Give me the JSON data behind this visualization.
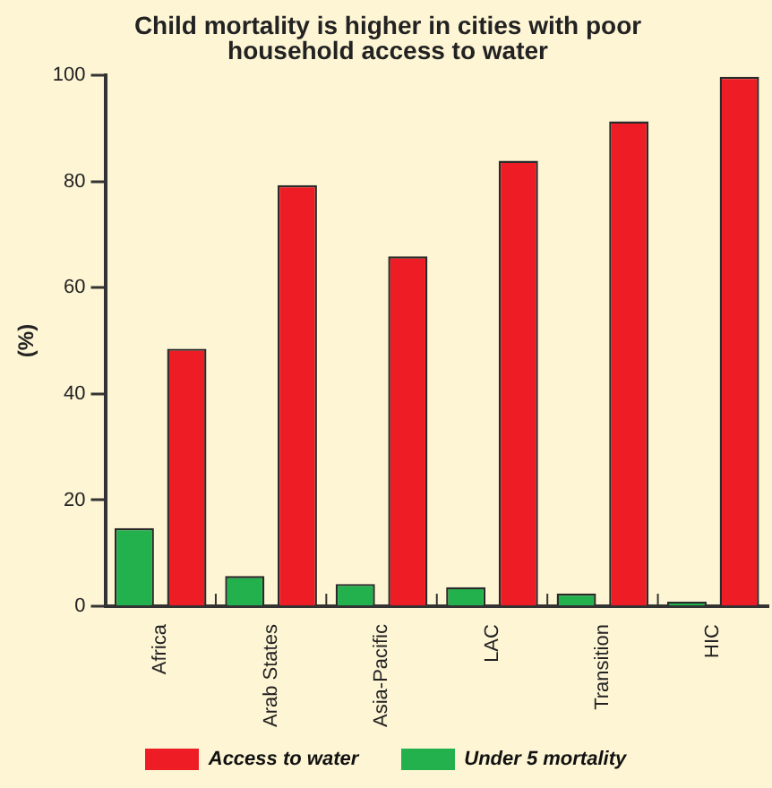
{
  "chart_data": {
    "type": "bar",
    "title": [
      "Child mortality is higher in cities with poor",
      "household access to water"
    ],
    "ylabel": "(%)",
    "categories": [
      "Africa",
      "Arab States",
      "Asia-Pacific",
      "LAC",
      "Transition",
      "HIC"
    ],
    "series": [
      {
        "name": "Under 5 mortality",
        "color": "#22b14c",
        "values": [
          14.7,
          5.7,
          4.2,
          3.6,
          2.4,
          0.9
        ]
      },
      {
        "name": "Access to water",
        "color": "#ee1c25",
        "values": [
          48.5,
          79.3,
          65.9,
          83.9,
          91.3,
          99.7
        ]
      }
    ],
    "ylim": [
      0,
      100
    ],
    "yticks": [
      0,
      20,
      40,
      60,
      80,
      100
    ],
    "grid": false,
    "legend": "bottom"
  }
}
